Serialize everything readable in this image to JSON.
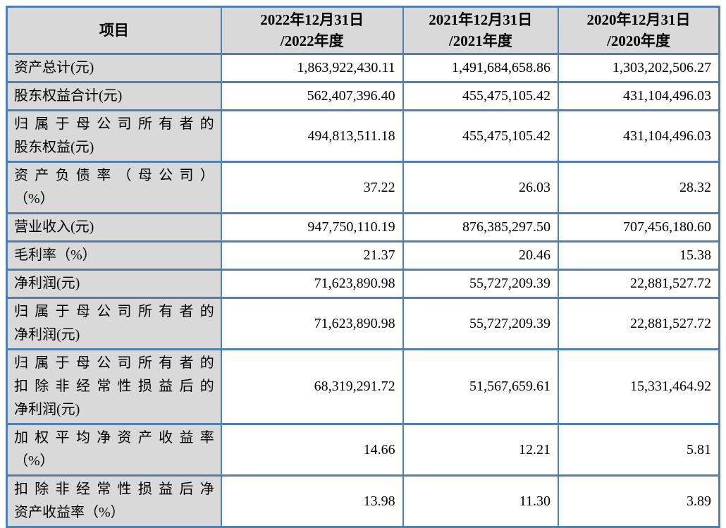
{
  "colors": {
    "border": "#4e80b2",
    "cellgray": "#d9d9d9",
    "paper": "#ffffff",
    "ink": "#000000"
  },
  "table": {
    "columns": [
      {
        "label_lines": [
          "项目"
        ]
      },
      {
        "label_lines": [
          "2022年12月31日",
          "/2022年度"
        ]
      },
      {
        "label_lines": [
          "2021年12月31日",
          "/2021年度"
        ]
      },
      {
        "label_lines": [
          "2020年12月31日",
          "/2020年度"
        ]
      }
    ],
    "rows": [
      {
        "label_lines": [
          "资产总计(元)"
        ],
        "values": [
          "1,863,922,430.11",
          "1,491,684,658.86",
          "1,303,202,506.27"
        ]
      },
      {
        "label_lines": [
          "股东权益合计(元)"
        ],
        "values": [
          "562,407,396.40",
          "455,475,105.42",
          "431,104,496.03"
        ]
      },
      {
        "label_lines": [
          "归属于母公司所有者的",
          "股东权益(元)"
        ],
        "values": [
          "494,813,511.18",
          "455,475,105.42",
          "431,104,496.03"
        ]
      },
      {
        "label_lines": [
          "资产负债率（母公司）",
          "（%）"
        ],
        "values": [
          "37.22",
          "26.03",
          "28.32"
        ]
      },
      {
        "label_lines": [
          "营业收入(元)"
        ],
        "values": [
          "947,750,110.19",
          "876,385,297.50",
          "707,456,180.60"
        ]
      },
      {
        "label_lines": [
          "毛利率（%）"
        ],
        "values": [
          "21.37",
          "20.46",
          "15.38"
        ]
      },
      {
        "label_lines": [
          "净利润(元)"
        ],
        "values": [
          "71,623,890.98",
          "55,727,209.39",
          "22,881,527.72"
        ]
      },
      {
        "label_lines": [
          "归属于母公司所有者的",
          "净利润(元)"
        ],
        "values": [
          "71,623,890.98",
          "55,727,209.39",
          "22,881,527.72"
        ]
      },
      {
        "label_lines": [
          "归属于母公司所有者的",
          "扣除非经常性损益后的",
          "净利润(元)"
        ],
        "values": [
          "68,319,291.72",
          "51,567,659.61",
          "15,331,464.92"
        ]
      },
      {
        "label_lines": [
          "加权平均净资产收益率",
          "（%）"
        ],
        "values": [
          "14.66",
          "12.21",
          "5.81"
        ]
      },
      {
        "label_lines": [
          "扣除非经常性损益后净",
          "资产收益率（%）"
        ],
        "values": [
          "13.98",
          "11.30",
          "3.89"
        ]
      }
    ]
  }
}
